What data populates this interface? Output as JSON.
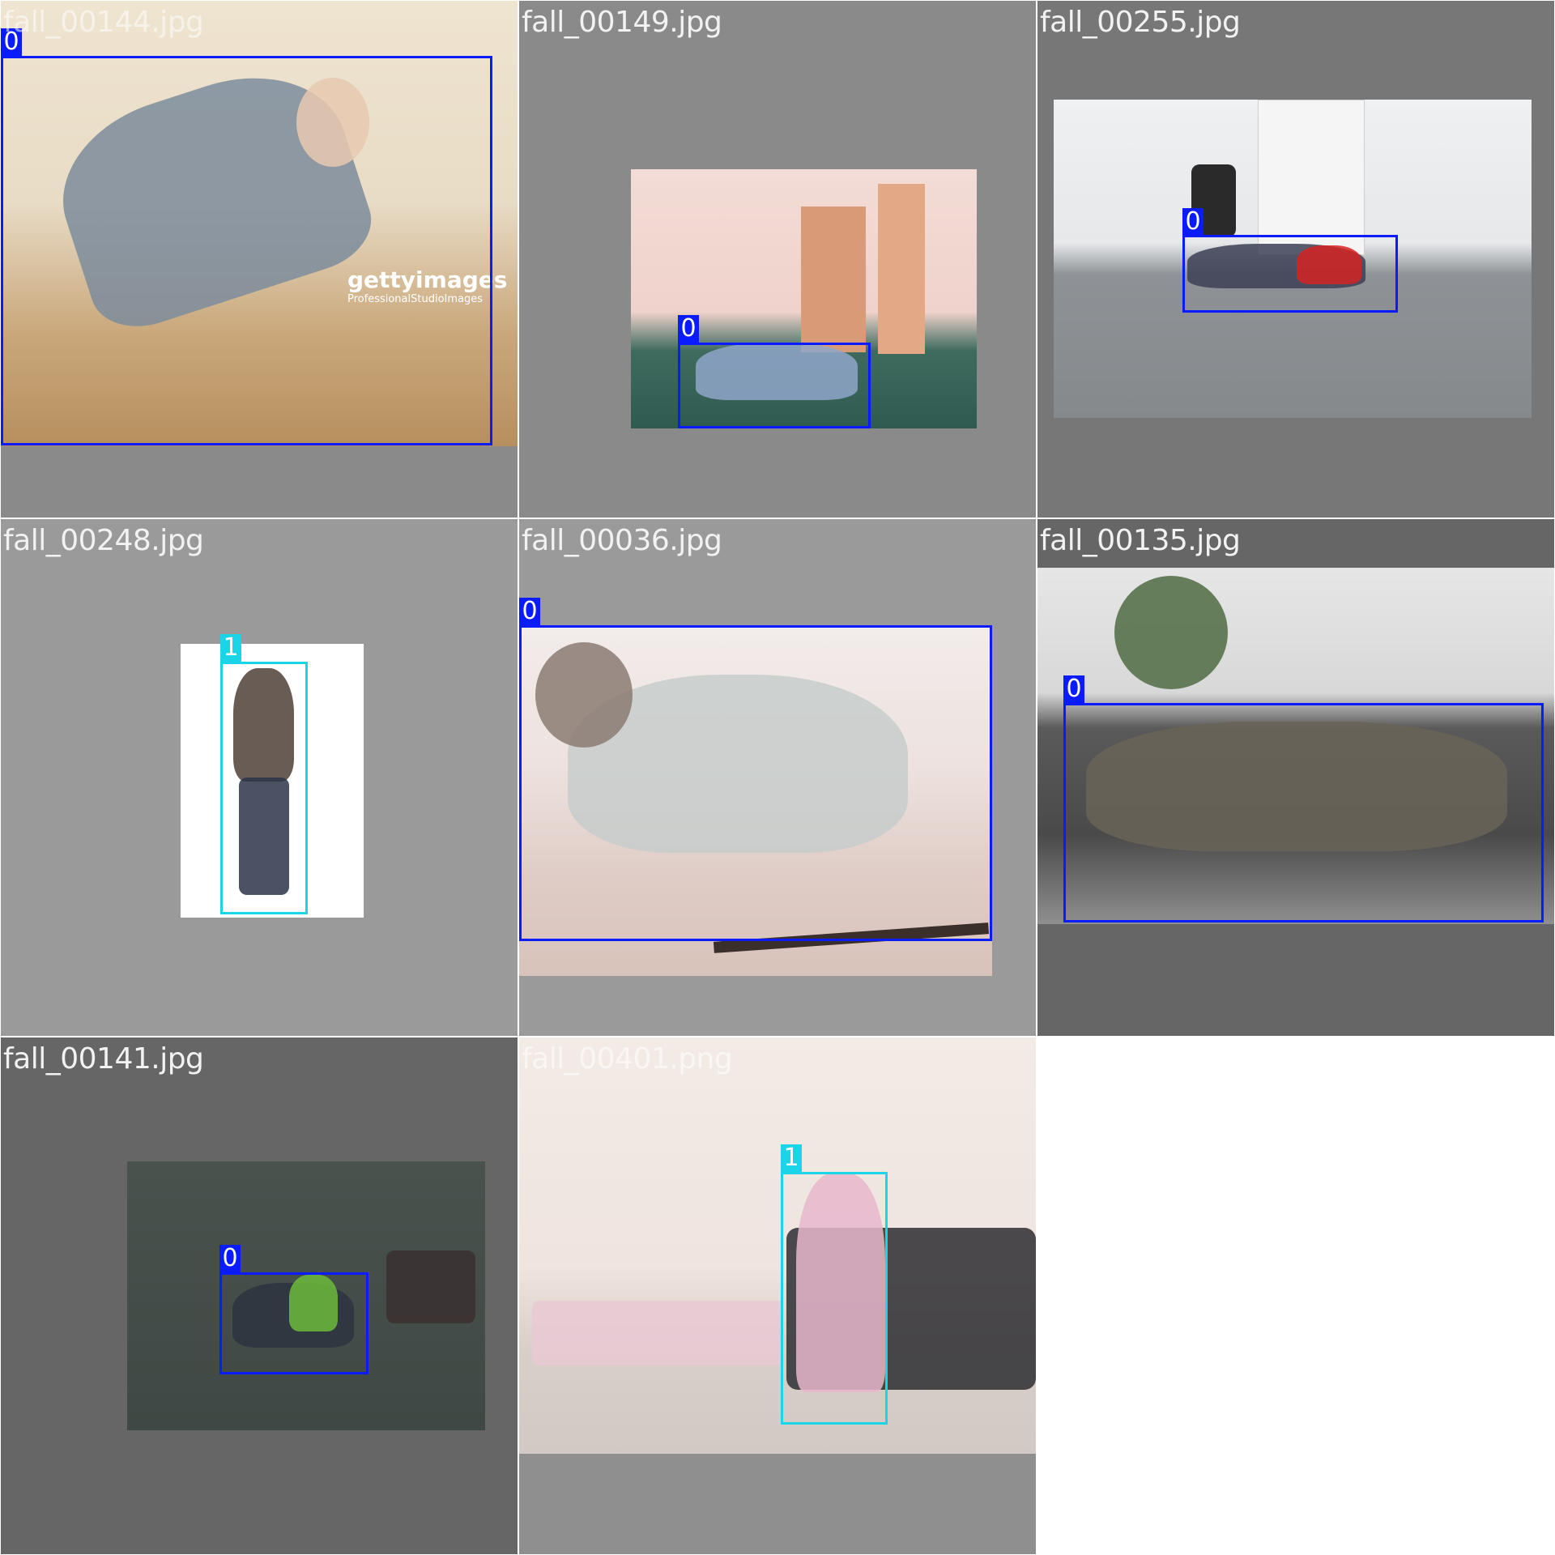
{
  "tiles": [
    {
      "filename": "fall_00144.jpg",
      "labels": [
        "0"
      ]
    },
    {
      "filename": "fall_00149.jpg",
      "labels": [
        "0"
      ]
    },
    {
      "filename": "fall_00255.jpg",
      "labels": [
        "0"
      ]
    },
    {
      "filename": "fall_00248.jpg",
      "labels": [
        "1"
      ]
    },
    {
      "filename": "fall_00036.jpg",
      "labels": [
        "0"
      ]
    },
    {
      "filename": "fall_00135.jpg",
      "labels": [
        "0"
      ]
    },
    {
      "filename": "fall_00141.jpg",
      "labels": [
        "0"
      ]
    },
    {
      "filename": "fall_00401.png",
      "labels": [
        "1"
      ]
    }
  ],
  "watermark": {
    "brand": "gettyimages",
    "sub": "ProfessionalStudioImages"
  },
  "colors": {
    "class_0": "#0a1cff",
    "class_1": "#1ad5e6"
  }
}
